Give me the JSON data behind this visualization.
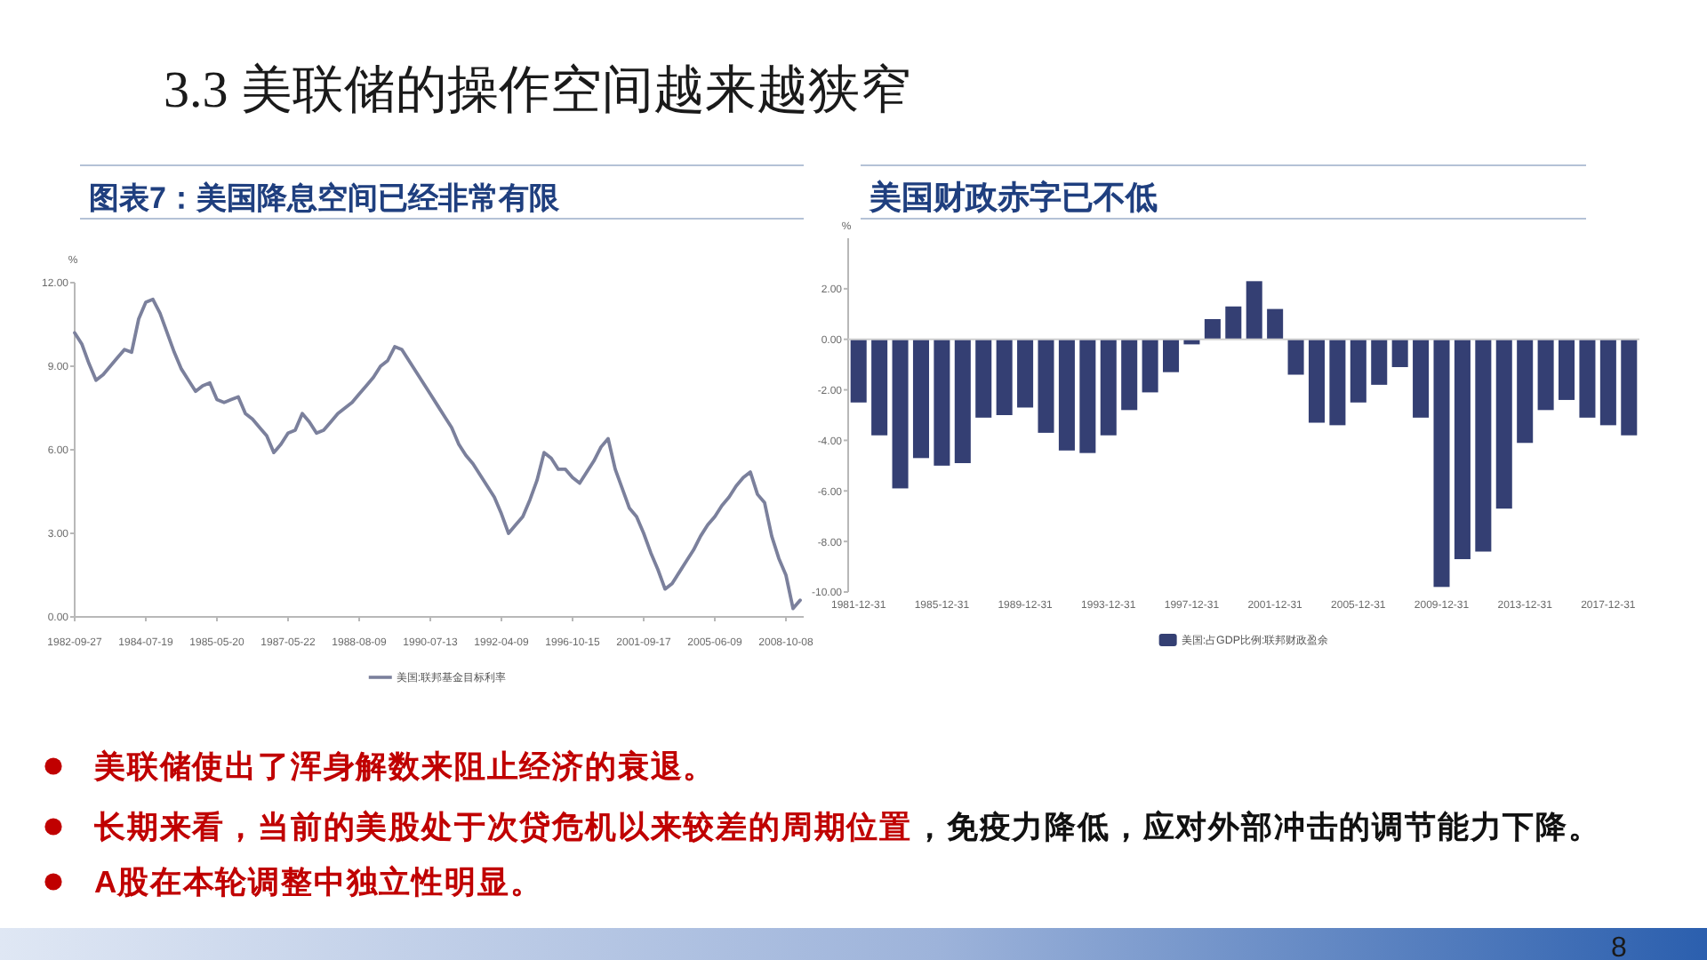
{
  "chart_data": [
    {
      "type": "other",
      "title": "3.3 美联储的操作空间越来越狭窄"
    },
    {
      "type": "line",
      "title": "图表7：美国降息空间已经非常有限",
      "ylabel": "%",
      "categories": [
        "1982-09-27",
        null,
        null,
        null,
        null,
        null,
        null,
        null,
        null,
        null,
        "1984-07-19",
        null,
        null,
        null,
        null,
        null,
        null,
        null,
        null,
        null,
        "1985-05-20",
        null,
        null,
        null,
        null,
        null,
        null,
        null,
        null,
        null,
        "1987-05-22",
        null,
        null,
        null,
        null,
        null,
        null,
        null,
        null,
        null,
        "1988-08-09",
        null,
        null,
        null,
        null,
        null,
        null,
        null,
        null,
        null,
        "1990-07-13",
        null,
        null,
        null,
        null,
        null,
        null,
        null,
        null,
        null,
        "1992-04-09",
        null,
        null,
        null,
        null,
        null,
        null,
        null,
        null,
        null,
        "1996-10-15",
        null,
        null,
        null,
        null,
        null,
        null,
        null,
        null,
        null,
        "2001-09-17",
        null,
        null,
        null,
        null,
        null,
        null,
        null,
        null,
        null,
        "2005-06-09",
        null,
        null,
        null,
        null,
        null,
        null,
        null,
        null,
        null,
        "2008-10-08",
        null,
        null
      ],
      "series": [
        {
          "name": "美国:联邦基金目标利率",
          "color": "#7b809c",
          "values": [
            10.2,
            9.8,
            9.1,
            8.5,
            8.7,
            9.0,
            9.3,
            9.6,
            9.5,
            10.7,
            11.3,
            11.4,
            10.9,
            10.2,
            9.5,
            8.9,
            8.5,
            8.1,
            8.3,
            8.4,
            7.8,
            7.7,
            7.8,
            7.9,
            7.3,
            7.1,
            6.8,
            6.5,
            5.9,
            6.2,
            6.6,
            6.7,
            7.3,
            7.0,
            6.6,
            6.7,
            7.0,
            7.3,
            7.5,
            7.7,
            8.0,
            8.3,
            8.6,
            9.0,
            9.2,
            9.7,
            9.6,
            9.2,
            8.8,
            8.4,
            8.0,
            7.6,
            7.2,
            6.8,
            6.2,
            5.8,
            5.5,
            5.1,
            4.7,
            4.3,
            3.7,
            3.0,
            3.3,
            3.6,
            4.2,
            4.9,
            5.9,
            5.7,
            5.3,
            5.3,
            5.0,
            4.8,
            5.2,
            5.6,
            6.1,
            6.4,
            5.3,
            4.6,
            3.9,
            3.6,
            3.0,
            2.3,
            1.7,
            1.0,
            1.2,
            1.6,
            2.0,
            2.4,
            2.9,
            3.3,
            3.6,
            4.0,
            4.3,
            4.7,
            5.0,
            5.2,
            4.4,
            4.1,
            2.9,
            2.1,
            1.5,
            0.3,
            0.6
          ]
        }
      ],
      "ylim": [
        0,
        12
      ],
      "yticks": [
        {
          "value": 0,
          "label": "0.00"
        },
        {
          "value": 3,
          "label": "3.00"
        },
        {
          "value": 6,
          "label": "6.00"
        },
        {
          "value": 9,
          "label": "9.00"
        },
        {
          "value": 12,
          "label": "12.00"
        }
      ],
      "legend": "bottom"
    },
    {
      "type": "bar",
      "title": "美国财政赤字已不低",
      "ylabel": "%",
      "categories": [
        "1981-12-31",
        null,
        null,
        null,
        "1985-12-31",
        null,
        null,
        null,
        "1989-12-31",
        null,
        null,
        null,
        "1993-12-31",
        null,
        null,
        null,
        "1997-12-31",
        null,
        null,
        null,
        "2001-12-31",
        null,
        null,
        null,
        "2005-12-31",
        null,
        null,
        null,
        "2009-12-31",
        null,
        null,
        null,
        "2013-12-31",
        null,
        null,
        null,
        "2017-12-31",
        null
      ],
      "series": [
        {
          "name": "美国:占GDP比例:联邦财政盈余",
          "color": "#343f73",
          "values": [
            -2.5,
            -3.8,
            -5.9,
            -4.7,
            -5.0,
            -4.9,
            -3.1,
            -3.0,
            -2.7,
            -3.7,
            -4.4,
            -4.5,
            -3.8,
            -2.8,
            -2.1,
            -1.3,
            -0.2,
            0.8,
            1.3,
            2.3,
            1.2,
            -1.4,
            -3.3,
            -3.4,
            -2.5,
            -1.8,
            -1.1,
            -3.1,
            -9.8,
            -8.7,
            -8.4,
            -6.7,
            -4.1,
            -2.8,
            -2.4,
            -3.1,
            -3.4,
            -3.8
          ]
        }
      ],
      "ylim": [
        -10,
        4
      ],
      "yticks": [
        {
          "value": -10,
          "label": "-10.00"
        },
        {
          "value": -8,
          "label": "-8.00"
        },
        {
          "value": -6,
          "label": "-6.00"
        },
        {
          "value": -4,
          "label": "-4.00"
        },
        {
          "value": -2,
          "label": "-2.00"
        },
        {
          "value": 0,
          "label": "0.00"
        },
        {
          "value": 2,
          "label": "2.00"
        }
      ],
      "legend": "bottom"
    },
    {
      "type": "other",
      "annotations": [
        "美联储使出了浑身解数来阻止经济的衰退。",
        "长期来看，当前的美股处于次贷危机以来较差的周期位置",
        "，免疫力降低，应对外部冲击的调节能力下降。",
        "A股在本轮调整中独立性明显。",
        "8"
      ]
    }
  ]
}
